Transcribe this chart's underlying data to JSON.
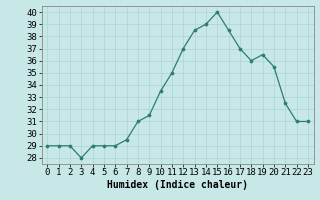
{
  "x": [
    0,
    1,
    2,
    3,
    4,
    5,
    6,
    7,
    8,
    9,
    10,
    11,
    12,
    13,
    14,
    15,
    16,
    17,
    18,
    19,
    20,
    21,
    22,
    23
  ],
  "y": [
    29,
    29,
    29,
    28,
    29,
    29,
    29,
    29.5,
    31,
    31.5,
    33.5,
    35,
    37,
    38.5,
    39,
    40,
    38.5,
    37,
    36,
    36.5,
    35.5,
    32.5,
    31,
    31
  ],
  "line_color": "#2e7d6e",
  "marker_color": "#2e7d6e",
  "bg_color": "#c8e8e8",
  "grid_color": "#b0d8d8",
  "xlabel": "Humidex (Indice chaleur)",
  "ylim": [
    27.5,
    40.5
  ],
  "xlim": [
    -0.5,
    23.5
  ],
  "yticks": [
    28,
    29,
    30,
    31,
    32,
    33,
    34,
    35,
    36,
    37,
    38,
    39,
    40
  ],
  "xticks": [
    0,
    1,
    2,
    3,
    4,
    5,
    6,
    7,
    8,
    9,
    10,
    11,
    12,
    13,
    14,
    15,
    16,
    17,
    18,
    19,
    20,
    21,
    22,
    23
  ],
  "xlabel_fontsize": 7,
  "tick_fontsize": 6.5,
  "spine_color": "#888888"
}
